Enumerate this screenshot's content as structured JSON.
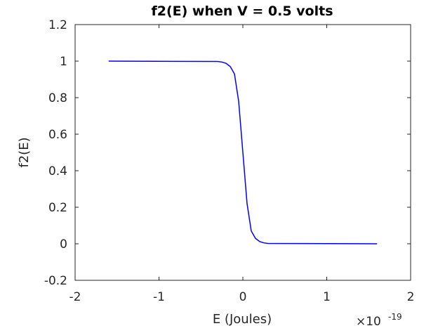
{
  "chart_data": {
    "type": "line",
    "title": "f2(E) when V = 0.5 volts",
    "xlabel": "E (Joules)",
    "ylabel": "f2(E)",
    "x_exponent_base": "×10",
    "x_exponent_power": "-19",
    "xlim": [
      -2,
      2
    ],
    "ylim": [
      -0.2,
      1.2
    ],
    "x_ticks": [
      -2,
      -1,
      0,
      1,
      2
    ],
    "x_tick_labels": [
      "-2",
      "-1",
      "0",
      "1",
      "2"
    ],
    "y_ticks": [
      -0.2,
      0,
      0.2,
      0.4,
      0.6,
      0.8,
      1,
      1.2
    ],
    "y_tick_labels": [
      "-0.2",
      "0",
      "0.2",
      "0.4",
      "0.6",
      "0.8",
      "1",
      "1.2"
    ],
    "grid": false,
    "line_color": "#0000ff",
    "series": [
      {
        "x": [
          -1.6,
          -0.3,
          -0.25,
          -0.2,
          -0.15,
          -0.1,
          -0.05,
          0,
          0.05,
          0.1,
          0.15,
          0.2,
          0.25,
          0.3,
          1.6
        ],
        "y": [
          1,
          0.998,
          0.995,
          0.988,
          0.97,
          0.93,
          0.78,
          0.5,
          0.22,
          0.07,
          0.03,
          0.012,
          0.005,
          0.002,
          0
        ]
      }
    ]
  }
}
